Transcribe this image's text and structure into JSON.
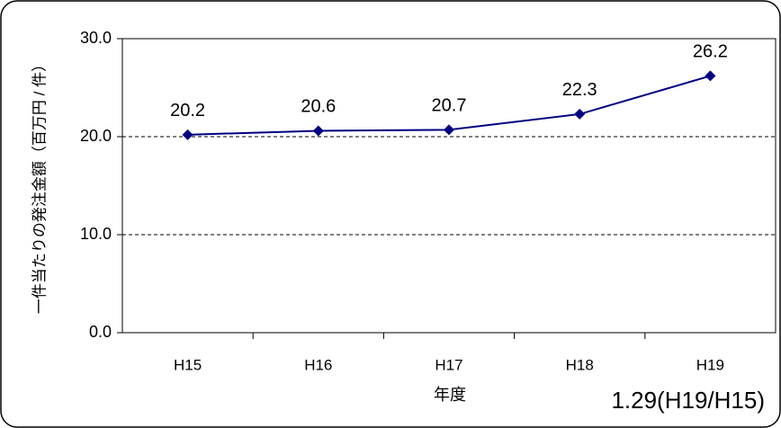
{
  "chart_data": {
    "type": "line",
    "categories": [
      "H15",
      "H16",
      "H17",
      "H18",
      "H19"
    ],
    "values": [
      20.2,
      20.6,
      20.7,
      22.3,
      26.2
    ],
    "color": "#000080",
    "ylim": [
      0,
      30
    ],
    "yticks": [
      {
        "value": 0,
        "label": "0.0"
      },
      {
        "value": 10,
        "label": "10.0"
      },
      {
        "value": 20,
        "label": "20.0"
      },
      {
        "value": 30,
        "label": "30.0"
      }
    ],
    "grid": true,
    "xlabel": "年度",
    "ylabel": "一件当たりの発注金額（百万円 / 件）",
    "annotation": "1.29(H19/H15)"
  }
}
